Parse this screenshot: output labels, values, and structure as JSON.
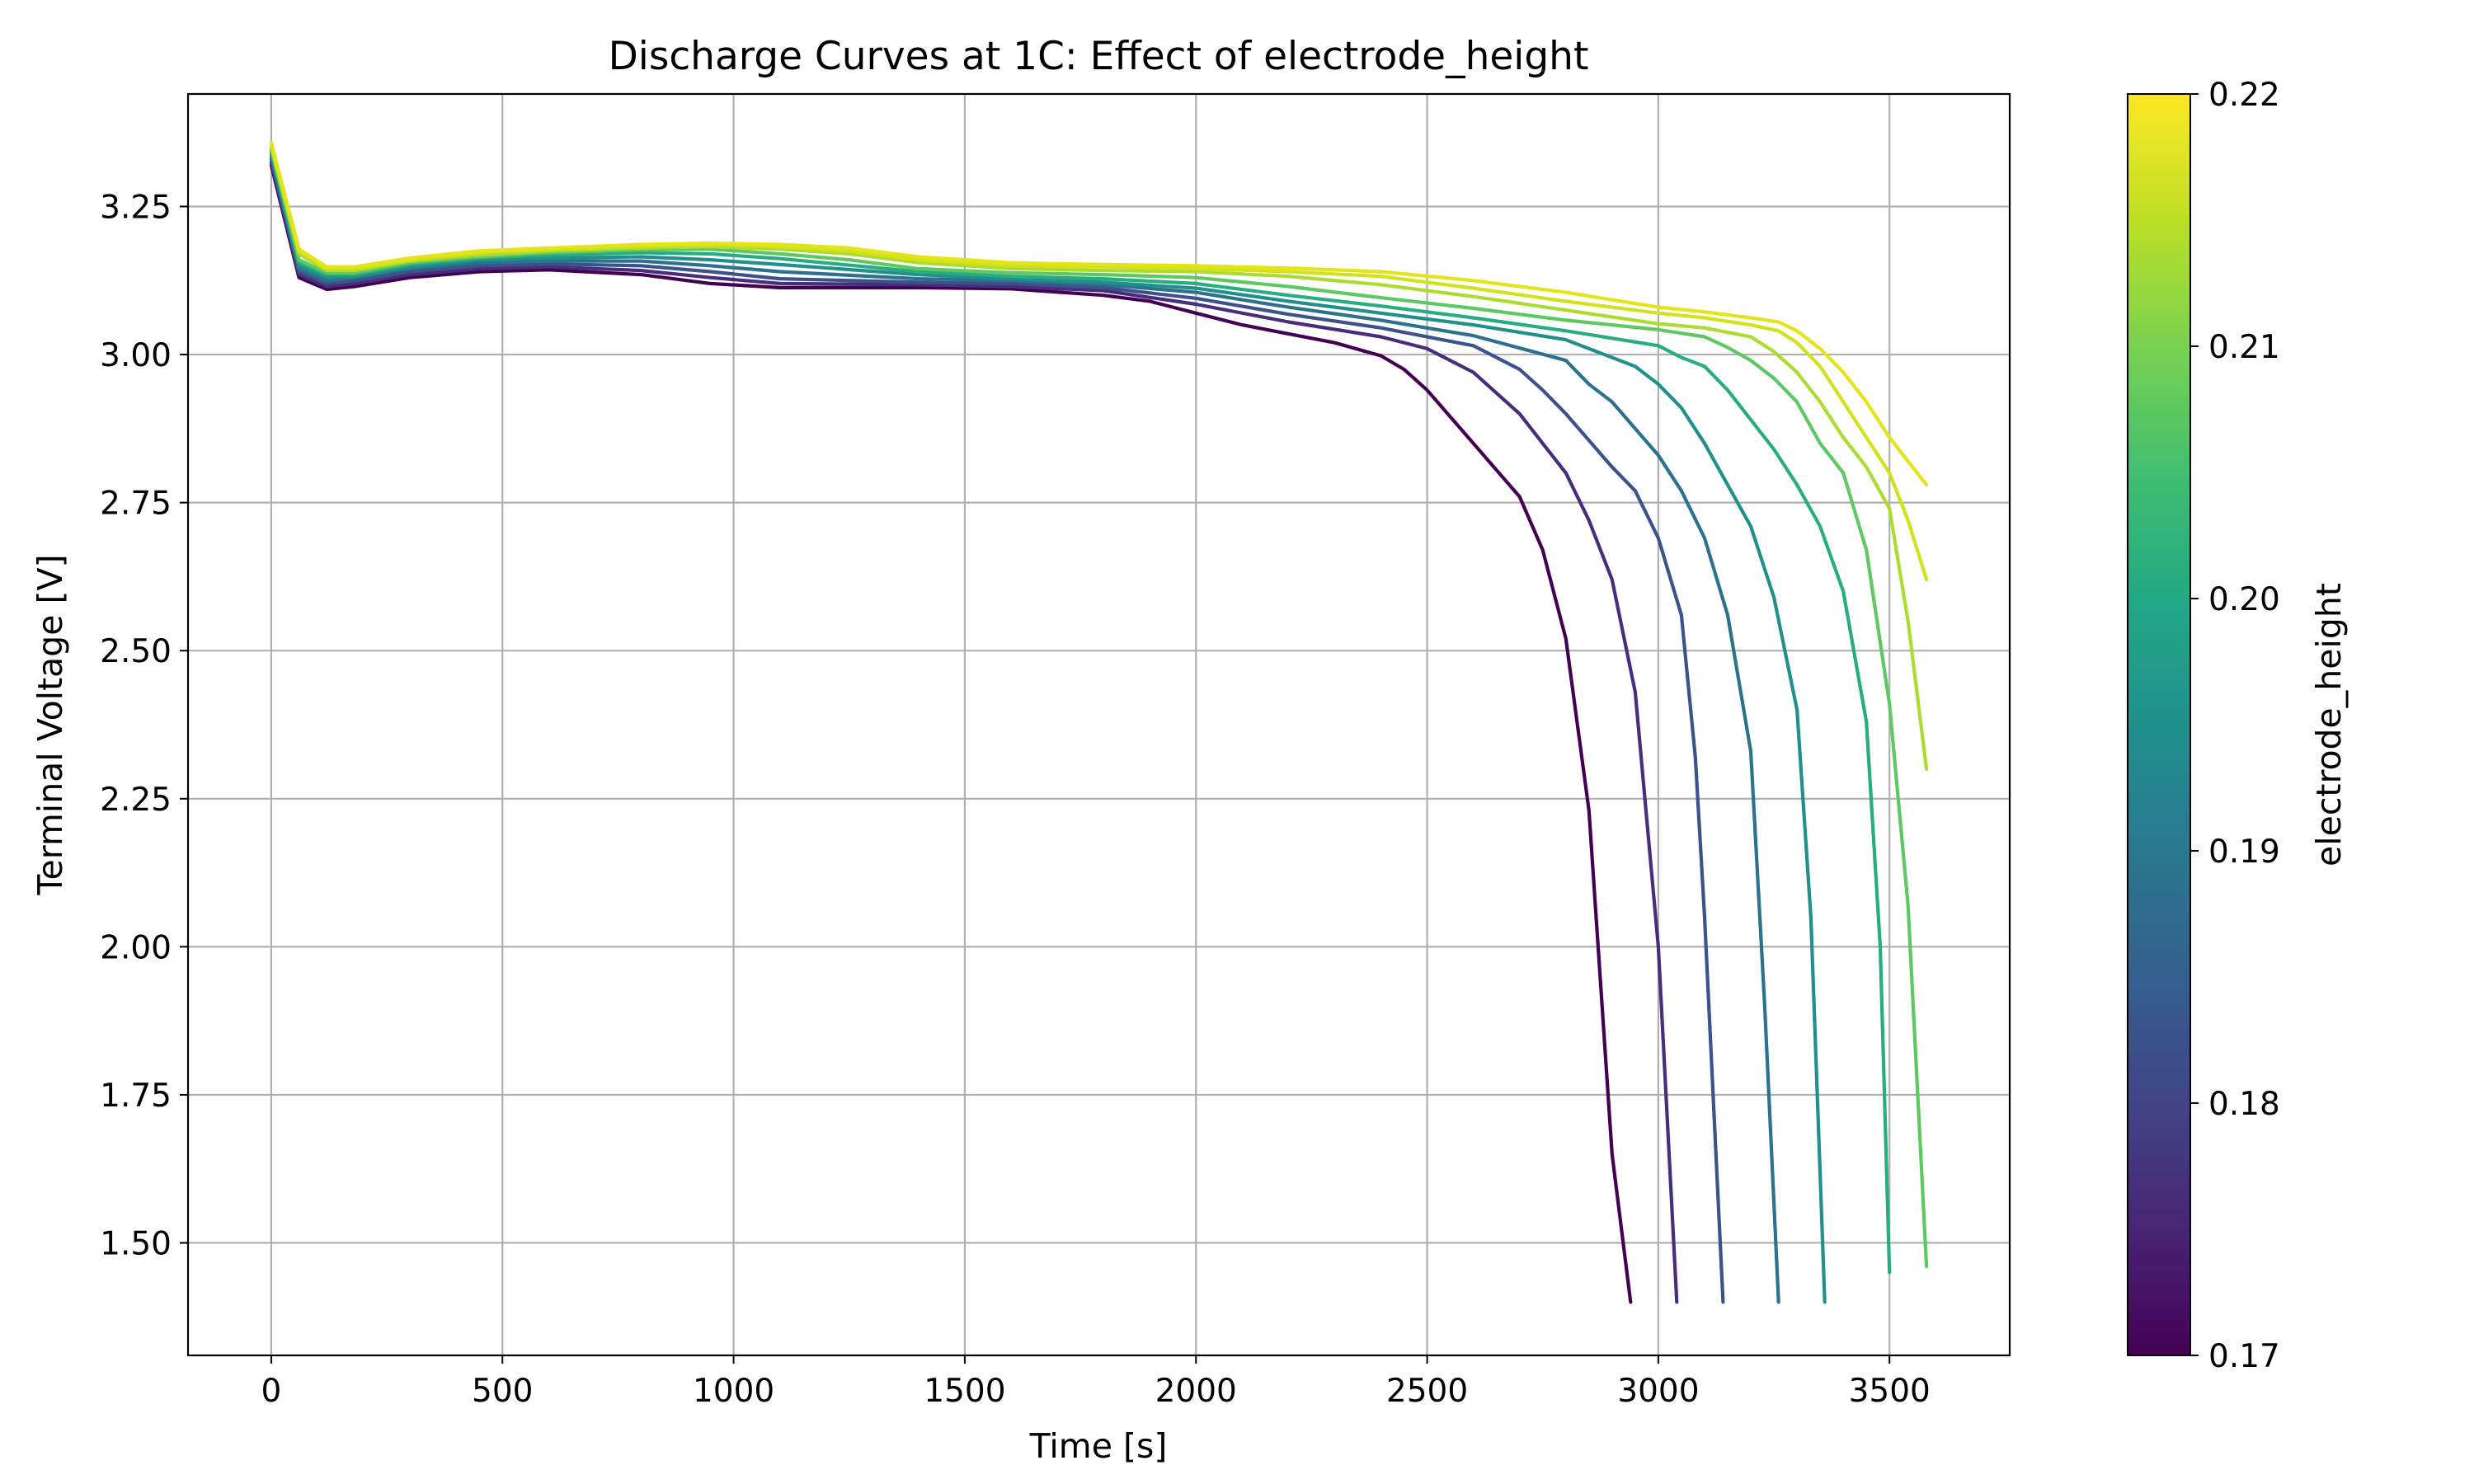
{
  "chart_data": {
    "type": "line",
    "title": "Discharge Curves at 1C: Effect of electrode_height",
    "xlabel": "Time [s]",
    "ylabel": "Terminal Voltage [V]",
    "xlim": [
      -180,
      3760
    ],
    "ylim": [
      1.31,
      3.44
    ],
    "x_ticks": [
      0,
      500,
      1000,
      1500,
      2000,
      2500,
      3000,
      3500
    ],
    "y_ticks": [
      1.5,
      1.75,
      2.0,
      2.25,
      2.5,
      2.75,
      3.0,
      3.25
    ],
    "grid": true,
    "colorbar": {
      "label": "electrode_height",
      "range": [
        0.17,
        0.22
      ],
      "ticks": [
        "0.17",
        "0.18",
        "0.19",
        "0.20",
        "0.21",
        "0.22"
      ],
      "colormap": "viridis"
    },
    "series": [
      {
        "color": "#440154",
        "values": [
          [
            0,
            3.32
          ],
          [
            60,
            3.13
          ],
          [
            120,
            3.11
          ],
          [
            180,
            3.115
          ],
          [
            300,
            3.13
          ],
          [
            450,
            3.14
          ],
          [
            600,
            3.143
          ],
          [
            800,
            3.135
          ],
          [
            950,
            3.12
          ],
          [
            1100,
            3.113
          ],
          [
            1400,
            3.113
          ],
          [
            1600,
            3.111
          ],
          [
            1800,
            3.1
          ],
          [
            1900,
            3.09
          ],
          [
            2000,
            3.07
          ],
          [
            2100,
            3.05
          ],
          [
            2200,
            3.035
          ],
          [
            2300,
            3.02
          ],
          [
            2400,
            2.998
          ],
          [
            2450,
            2.975
          ],
          [
            2500,
            2.94
          ],
          [
            2600,
            2.85
          ],
          [
            2700,
            2.76
          ],
          [
            2750,
            2.67
          ],
          [
            2800,
            2.52
          ],
          [
            2850,
            2.23
          ],
          [
            2900,
            1.65
          ],
          [
            2940,
            1.4
          ]
        ]
      },
      {
        "color": "#472D7B",
        "values": [
          [
            0,
            3.325
          ],
          [
            60,
            3.135
          ],
          [
            120,
            3.115
          ],
          [
            180,
            3.12
          ],
          [
            300,
            3.135
          ],
          [
            450,
            3.145
          ],
          [
            600,
            3.148
          ],
          [
            800,
            3.142
          ],
          [
            950,
            3.13
          ],
          [
            1100,
            3.12
          ],
          [
            1400,
            3.118
          ],
          [
            1600,
            3.115
          ],
          [
            1800,
            3.108
          ],
          [
            2000,
            3.085
          ],
          [
            2200,
            3.055
          ],
          [
            2400,
            3.03
          ],
          [
            2500,
            3.01
          ],
          [
            2550,
            2.99
          ],
          [
            2600,
            2.97
          ],
          [
            2700,
            2.9
          ],
          [
            2750,
            2.85
          ],
          [
            2800,
            2.8
          ],
          [
            2850,
            2.72
          ],
          [
            2900,
            2.62
          ],
          [
            2950,
            2.43
          ],
          [
            3000,
            2.0
          ],
          [
            3040,
            1.4
          ]
        ]
      },
      {
        "color": "#3B528B",
        "values": [
          [
            0,
            3.33
          ],
          [
            60,
            3.14
          ],
          [
            120,
            3.12
          ],
          [
            180,
            3.125
          ],
          [
            300,
            3.14
          ],
          [
            450,
            3.15
          ],
          [
            600,
            3.153
          ],
          [
            800,
            3.15
          ],
          [
            950,
            3.14
          ],
          [
            1100,
            3.128
          ],
          [
            1400,
            3.122
          ],
          [
            1600,
            3.12
          ],
          [
            1800,
            3.113
          ],
          [
            2000,
            3.095
          ],
          [
            2200,
            3.068
          ],
          [
            2400,
            3.045
          ],
          [
            2600,
            3.015
          ],
          [
            2700,
            2.975
          ],
          [
            2750,
            2.94
          ],
          [
            2800,
            2.9
          ],
          [
            2900,
            2.81
          ],
          [
            2950,
            2.77
          ],
          [
            3000,
            2.69
          ],
          [
            3050,
            2.56
          ],
          [
            3080,
            2.32
          ],
          [
            3100,
            2.05
          ],
          [
            3140,
            1.4
          ]
        ]
      },
      {
        "color": "#2C728E",
        "values": [
          [
            0,
            3.335
          ],
          [
            60,
            3.145
          ],
          [
            120,
            3.125
          ],
          [
            180,
            3.13
          ],
          [
            300,
            3.145
          ],
          [
            450,
            3.155
          ],
          [
            600,
            3.158
          ],
          [
            800,
            3.158
          ],
          [
            950,
            3.15
          ],
          [
            1100,
            3.14
          ],
          [
            1400,
            3.128
          ],
          [
            1600,
            3.125
          ],
          [
            1800,
            3.118
          ],
          [
            2000,
            3.105
          ],
          [
            2200,
            3.08
          ],
          [
            2400,
            3.058
          ],
          [
            2600,
            3.032
          ],
          [
            2800,
            2.99
          ],
          [
            2850,
            2.95
          ],
          [
            2900,
            2.92
          ],
          [
            3000,
            2.83
          ],
          [
            3050,
            2.77
          ],
          [
            3100,
            2.69
          ],
          [
            3150,
            2.56
          ],
          [
            3200,
            2.33
          ],
          [
            3230,
            1.9
          ],
          [
            3260,
            1.4
          ]
        ]
      },
      {
        "color": "#21908C",
        "values": [
          [
            0,
            3.34
          ],
          [
            60,
            3.15
          ],
          [
            120,
            3.13
          ],
          [
            180,
            3.132
          ],
          [
            300,
            3.148
          ],
          [
            450,
            3.16
          ],
          [
            600,
            3.163
          ],
          [
            800,
            3.165
          ],
          [
            950,
            3.16
          ],
          [
            1100,
            3.152
          ],
          [
            1400,
            3.135
          ],
          [
            1600,
            3.128
          ],
          [
            1800,
            3.122
          ],
          [
            2000,
            3.112
          ],
          [
            2200,
            3.09
          ],
          [
            2400,
            3.07
          ],
          [
            2600,
            3.05
          ],
          [
            2800,
            3.025
          ],
          [
            2950,
            2.98
          ],
          [
            3000,
            2.95
          ],
          [
            3050,
            2.91
          ],
          [
            3100,
            2.85
          ],
          [
            3150,
            2.78
          ],
          [
            3200,
            2.71
          ],
          [
            3250,
            2.59
          ],
          [
            3300,
            2.4
          ],
          [
            3330,
            2.05
          ],
          [
            3360,
            1.4
          ]
        ]
      },
      {
        "color": "#27AD81",
        "values": [
          [
            0,
            3.345
          ],
          [
            60,
            3.155
          ],
          [
            120,
            3.135
          ],
          [
            180,
            3.135
          ],
          [
            300,
            3.152
          ],
          [
            450,
            3.163
          ],
          [
            600,
            3.168
          ],
          [
            800,
            3.172
          ],
          [
            950,
            3.17
          ],
          [
            1100,
            3.162
          ],
          [
            1400,
            3.14
          ],
          [
            1600,
            3.132
          ],
          [
            1800,
            3.128
          ],
          [
            2000,
            3.12
          ],
          [
            2200,
            3.1
          ],
          [
            2400,
            3.082
          ],
          [
            2600,
            3.062
          ],
          [
            2800,
            3.04
          ],
          [
            3000,
            3.015
          ],
          [
            3050,
            2.995
          ],
          [
            3100,
            2.98
          ],
          [
            3150,
            2.94
          ],
          [
            3200,
            2.89
          ],
          [
            3250,
            2.84
          ],
          [
            3300,
            2.78
          ],
          [
            3350,
            2.71
          ],
          [
            3400,
            2.6
          ],
          [
            3450,
            2.38
          ],
          [
            3480,
            2.0
          ],
          [
            3500,
            1.45
          ]
        ]
      },
      {
        "color": "#5EC962",
        "values": [
          [
            0,
            3.348
          ],
          [
            60,
            3.16
          ],
          [
            120,
            3.138
          ],
          [
            180,
            3.138
          ],
          [
            300,
            3.155
          ],
          [
            450,
            3.165
          ],
          [
            600,
            3.172
          ],
          [
            800,
            3.177
          ],
          [
            950,
            3.178
          ],
          [
            1100,
            3.17
          ],
          [
            1250,
            3.16
          ],
          [
            1400,
            3.145
          ],
          [
            1600,
            3.138
          ],
          [
            1800,
            3.135
          ],
          [
            2000,
            3.13
          ],
          [
            2200,
            3.115
          ],
          [
            2400,
            3.096
          ],
          [
            2600,
            3.078
          ],
          [
            2800,
            3.058
          ],
          [
            3000,
            3.042
          ],
          [
            3100,
            3.03
          ],
          [
            3150,
            3.012
          ],
          [
            3200,
            2.99
          ],
          [
            3250,
            2.96
          ],
          [
            3300,
            2.92
          ],
          [
            3350,
            2.85
          ],
          [
            3400,
            2.8
          ],
          [
            3450,
            2.67
          ],
          [
            3500,
            2.41
          ],
          [
            3540,
            2.07
          ],
          [
            3580,
            1.46
          ]
        ]
      },
      {
        "color": "#ADDC30",
        "values": [
          [
            0,
            3.352
          ],
          [
            60,
            3.17
          ],
          [
            120,
            3.142
          ],
          [
            180,
            3.142
          ],
          [
            300,
            3.158
          ],
          [
            450,
            3.168
          ],
          [
            600,
            3.175
          ],
          [
            800,
            3.18
          ],
          [
            950,
            3.182
          ],
          [
            1100,
            3.178
          ],
          [
            1250,
            3.17
          ],
          [
            1400,
            3.155
          ],
          [
            1600,
            3.145
          ],
          [
            1800,
            3.142
          ],
          [
            2000,
            3.14
          ],
          [
            2200,
            3.132
          ],
          [
            2400,
            3.118
          ],
          [
            2600,
            3.098
          ],
          [
            2800,
            3.075
          ],
          [
            3000,
            3.052
          ],
          [
            3100,
            3.045
          ],
          [
            3200,
            3.03
          ],
          [
            3250,
            3.005
          ],
          [
            3300,
            2.97
          ],
          [
            3350,
            2.92
          ],
          [
            3400,
            2.86
          ],
          [
            3450,
            2.81
          ],
          [
            3500,
            2.74
          ],
          [
            3540,
            2.55
          ],
          [
            3580,
            2.3
          ]
        ]
      },
      {
        "color": "#D2E21B",
        "values": [
          [
            0,
            3.355
          ],
          [
            60,
            3.175
          ],
          [
            120,
            3.145
          ],
          [
            180,
            3.145
          ],
          [
            300,
            3.16
          ],
          [
            450,
            3.172
          ],
          [
            600,
            3.178
          ],
          [
            800,
            3.183
          ],
          [
            950,
            3.185
          ],
          [
            1100,
            3.182
          ],
          [
            1250,
            3.175
          ],
          [
            1400,
            3.16
          ],
          [
            1600,
            3.15
          ],
          [
            1800,
            3.148
          ],
          [
            2000,
            3.145
          ],
          [
            2200,
            3.14
          ],
          [
            2400,
            3.132
          ],
          [
            2600,
            3.112
          ],
          [
            2800,
            3.09
          ],
          [
            3000,
            3.07
          ],
          [
            3100,
            3.062
          ],
          [
            3200,
            3.05
          ],
          [
            3260,
            3.04
          ],
          [
            3300,
            3.02
          ],
          [
            3350,
            2.98
          ],
          [
            3400,
            2.92
          ],
          [
            3450,
            2.86
          ],
          [
            3500,
            2.8
          ],
          [
            3540,
            2.72
          ],
          [
            3580,
            2.62
          ]
        ]
      },
      {
        "color": "#E5E419",
        "values": [
          [
            0,
            3.358
          ],
          [
            60,
            3.178
          ],
          [
            120,
            3.148
          ],
          [
            180,
            3.148
          ],
          [
            300,
            3.163
          ],
          [
            450,
            3.175
          ],
          [
            600,
            3.18
          ],
          [
            800,
            3.186
          ],
          [
            950,
            3.188
          ],
          [
            1100,
            3.186
          ],
          [
            1250,
            3.18
          ],
          [
            1400,
            3.165
          ],
          [
            1600,
            3.155
          ],
          [
            1800,
            3.152
          ],
          [
            2000,
            3.15
          ],
          [
            2200,
            3.146
          ],
          [
            2400,
            3.14
          ],
          [
            2600,
            3.125
          ],
          [
            2800,
            3.105
          ],
          [
            3000,
            3.08
          ],
          [
            3100,
            3.072
          ],
          [
            3200,
            3.062
          ],
          [
            3260,
            3.055
          ],
          [
            3300,
            3.04
          ],
          [
            3350,
            3.01
          ],
          [
            3400,
            2.97
          ],
          [
            3450,
            2.92
          ],
          [
            3500,
            2.86
          ],
          [
            3540,
            2.82
          ],
          [
            3580,
            2.78
          ]
        ]
      }
    ]
  }
}
